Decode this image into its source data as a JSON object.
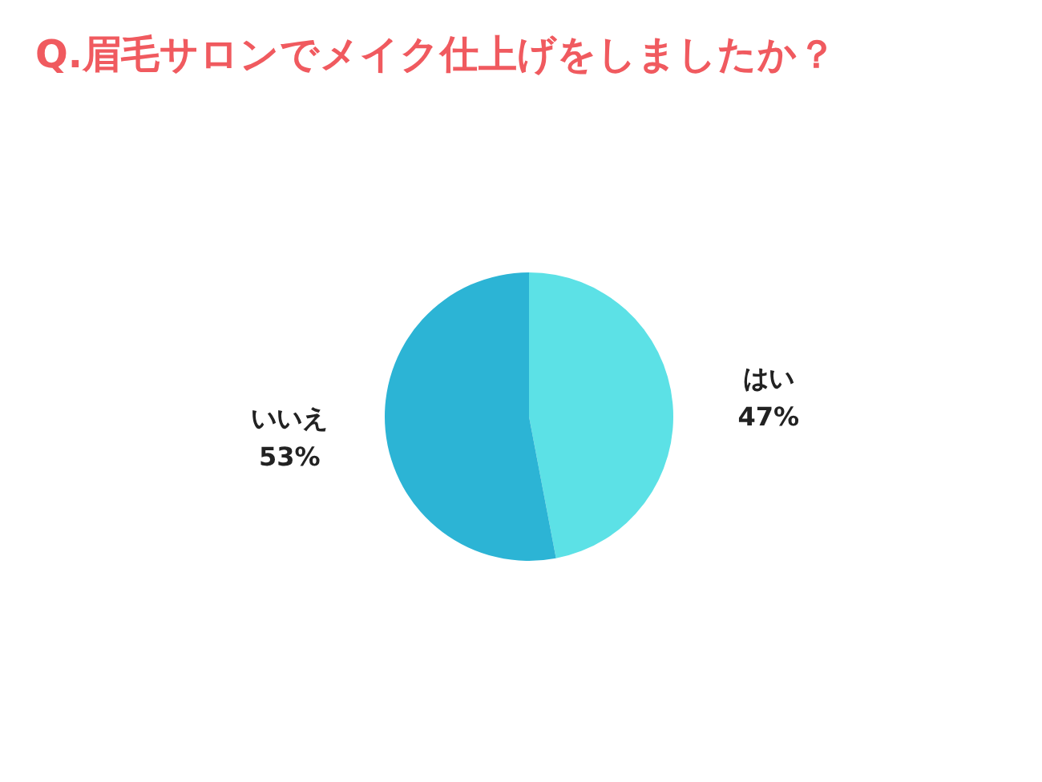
{
  "chart_data": {
    "type": "pie",
    "title": "Q.眉毛サロンでメイク仕上げをしましたか？",
    "categories": [
      "はい",
      "いいえ"
    ],
    "values": [
      47,
      53
    ],
    "colors": [
      "#5ce1e6",
      "#2cb4d5"
    ],
    "value_labels": [
      "47%",
      "53%"
    ]
  }
}
